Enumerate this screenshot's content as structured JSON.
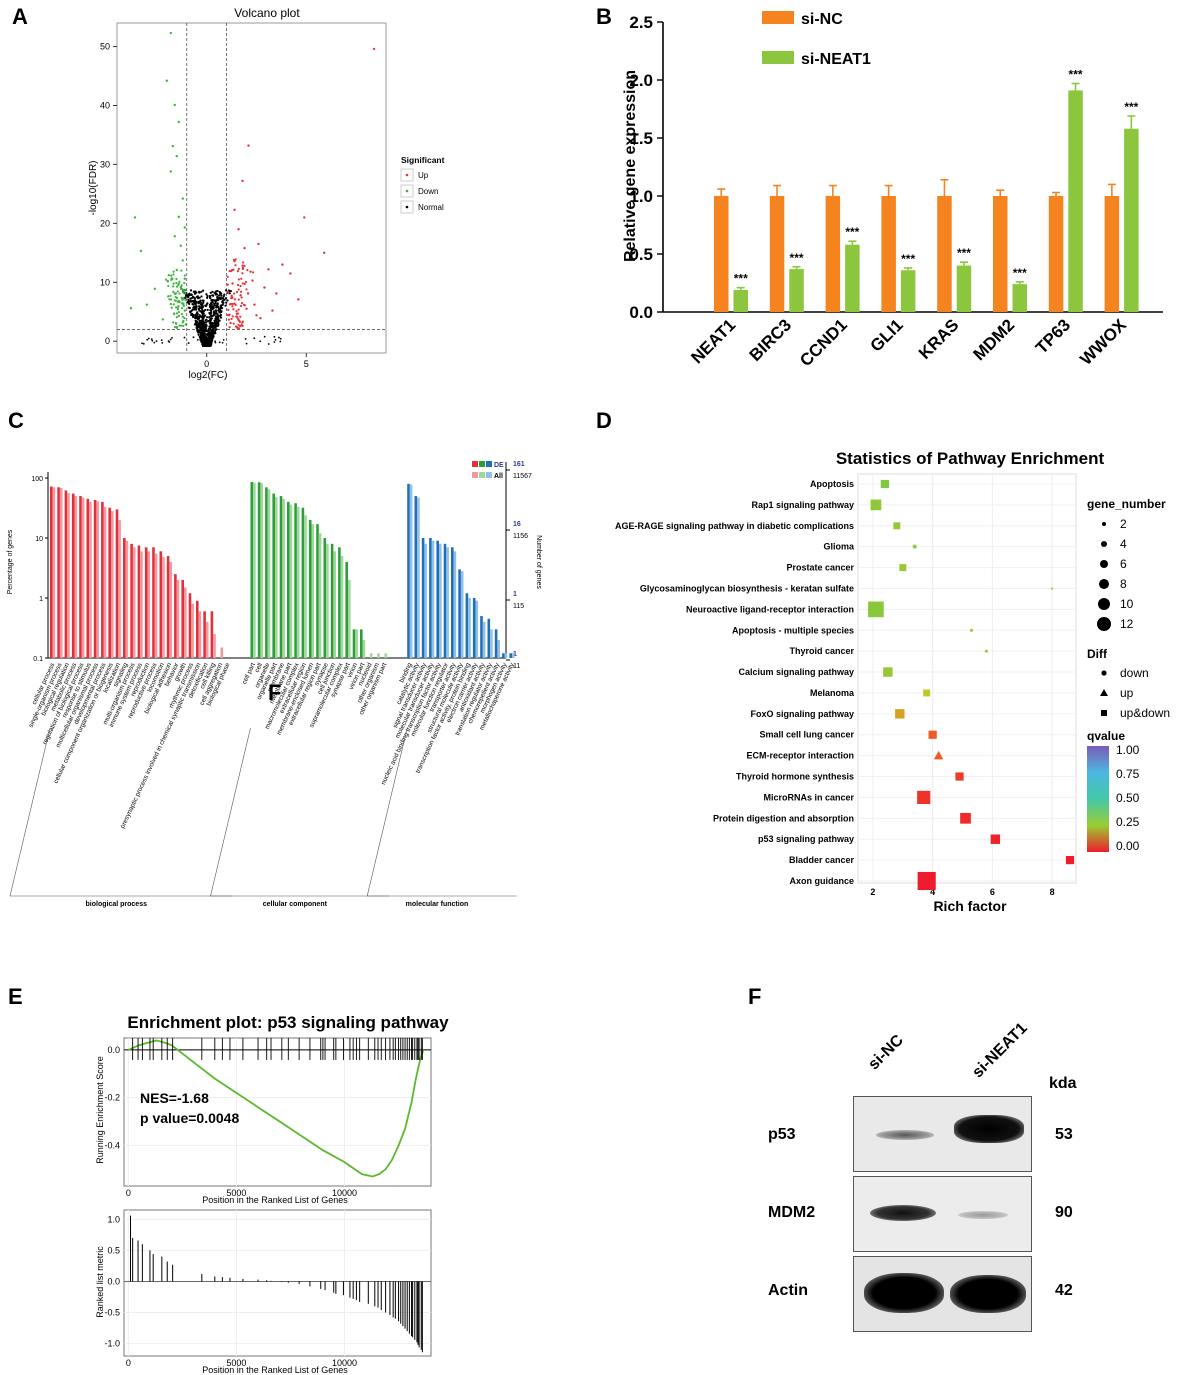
{
  "panel_labels": {
    "a": "A",
    "b": "B",
    "c": "C",
    "d": "D",
    "e": "E",
    "f": "F"
  },
  "chart_data": [
    {
      "id": "A",
      "type": "scatter",
      "title": "Volcano plot",
      "xlabel": "log2(FC)",
      "ylabel": "-log10(FDR)",
      "xticks": [
        "0",
        "5"
      ],
      "yticks": [
        "0",
        "10",
        "20",
        "30",
        "40",
        "50"
      ],
      "xlim": [
        -4.5,
        9
      ],
      "ylim": [
        -2,
        54
      ],
      "fc_threshold": [
        -1,
        1
      ],
      "fdr_threshold": 2,
      "legend_title": "Significant",
      "legend": [
        {
          "label": "Up",
          "color": "#e8323a"
        },
        {
          "label": "Down",
          "color": "#3cb53c"
        },
        {
          "label": "Normal",
          "color": "#000000"
        }
      ],
      "up_points": [
        [
          8.4,
          49.6
        ],
        [
          2.1,
          33.2
        ],
        [
          4.9,
          21
        ],
        [
          5.9,
          15
        ],
        [
          3.8,
          13
        ],
        [
          4.2,
          11.5
        ],
        [
          3.1,
          12.2
        ],
        [
          2.6,
          16.5
        ],
        [
          1.6,
          19
        ],
        [
          1.9,
          15.8
        ],
        [
          2.3,
          10.3
        ],
        [
          1.4,
          13.6
        ],
        [
          2.9,
          9.1
        ],
        [
          1.7,
          7.8
        ],
        [
          3.5,
          8.1
        ],
        [
          2.4,
          6.2
        ],
        [
          1.3,
          9.8
        ],
        [
          2.0,
          5.5
        ],
        [
          1.5,
          4.2
        ],
        [
          3.3,
          5.2
        ],
        [
          1.2,
          3.1
        ],
        [
          1.8,
          2.6
        ],
        [
          2.7,
          3.9
        ],
        [
          1.4,
          22.3
        ],
        [
          1.8,
          27.2
        ],
        [
          2.2,
          11.8
        ],
        [
          1.3,
          6.3
        ],
        [
          1.6,
          3.6
        ],
        [
          4.6,
          7.1
        ],
        [
          2.5,
          4.4
        ]
      ],
      "down_points": [
        [
          -1.8,
          52.3
        ],
        [
          -2.0,
          44.2
        ],
        [
          -1.6,
          40.1
        ],
        [
          -1.4,
          37.2
        ],
        [
          -1.7,
          33.1
        ],
        [
          -1.5,
          31.4
        ],
        [
          -1.8,
          28.8
        ],
        [
          -3.6,
          21
        ],
        [
          -3.3,
          15.3
        ],
        [
          -1.2,
          24.2
        ],
        [
          -1.4,
          21.1
        ],
        [
          -1.1,
          19.3
        ],
        [
          -1.6,
          17.8
        ],
        [
          -1.3,
          16.2
        ],
        [
          -1.2,
          13.7
        ],
        [
          -1.5,
          12.1
        ],
        [
          -1.1,
          10.6
        ],
        [
          -1.9,
          11.2
        ],
        [
          -1.3,
          9.2
        ],
        [
          -1.6,
          8.1
        ],
        [
          -1.2,
          7.1
        ],
        [
          -1.8,
          6.3
        ],
        [
          -1.1,
          5.2
        ],
        [
          -1.4,
          4.3
        ],
        [
          -2.2,
          3.7
        ],
        [
          -3.0,
          6.2
        ],
        [
          -3.8,
          5.6
        ],
        [
          -1.2,
          3.2
        ],
        [
          -1.5,
          2.4
        ],
        [
          -2.6,
          8.9
        ]
      ],
      "normal_density": "V-shaped cloud of non-significant genes between log2(FC) -1 and 1"
    },
    {
      "id": "B",
      "type": "bar",
      "ylabel": "Relative gene expression",
      "ylim": [
        0,
        2.5
      ],
      "yticks": [
        "0.0",
        "0.5",
        "1.0",
        "1.5",
        "2.0",
        "2.5"
      ],
      "categories": [
        "NEAT1",
        "BIRC3",
        "CCND1",
        "GLI1",
        "KRAS",
        "MDM2",
        "TP63",
        "WWOX"
      ],
      "series": [
        {
          "name": "si-NC",
          "color": "#f5831f",
          "values": [
            1.0,
            1.0,
            1.0,
            1.0,
            1.0,
            1.0,
            1.0,
            1.0
          ],
          "errors": [
            0.06,
            0.09,
            0.09,
            0.09,
            0.14,
            0.05,
            0.03,
            0.1
          ]
        },
        {
          "name": "si-NEAT1",
          "color": "#8cc63e",
          "values": [
            0.19,
            0.37,
            0.58,
            0.36,
            0.4,
            0.24,
            1.91,
            1.58
          ],
          "errors": [
            0.02,
            0.02,
            0.03,
            0.02,
            0.03,
            0.02,
            0.06,
            0.11
          ]
        }
      ],
      "significance": [
        "***",
        "***",
        "***",
        "***",
        "***",
        "***",
        "***",
        "***"
      ]
    },
    {
      "id": "C",
      "type": "bar",
      "yscale": "log",
      "ylabel": "Percentage of genes",
      "y2label": "Number of genes",
      "yticks": [
        "100",
        "10",
        "1",
        "0.1"
      ],
      "y2ticks_de": [
        "161",
        "16",
        "1",
        "1"
      ],
      "y2ticks_all": [
        "11567",
        "1156",
        "115",
        "11"
      ],
      "legend": [
        {
          "label": "DE"
        },
        {
          "label": "All"
        }
      ],
      "overlay_letter": "F",
      "groups": [
        {
          "name": "biological process",
          "dark": "#e0303a",
          "light": "#f09aa0",
          "categories": [
            "cellular process",
            "single-organism process",
            "biological regulation",
            "metabolic process",
            "regulation of biological process",
            "response to stimulus",
            "multicellular organismal process",
            "developmental process",
            "cellular component organization or biogenesis",
            "localization",
            "signaling",
            "multi-organism process",
            "immune system process",
            "reproduction",
            "reproductive process",
            "locomotion",
            "biological adhesion",
            "behavior",
            "growth",
            "rhythmic process",
            "presynaptic process involved in chemical synaptic transmission",
            "detoxification",
            "cell killing",
            "cell aggregation",
            "biological phase"
          ],
          "de": [
            72,
            70,
            62,
            55,
            50,
            45,
            43,
            40,
            32,
            30,
            10,
            8,
            7.5,
            7,
            7,
            6,
            5,
            2.5,
            2,
            1.2,
            0.9,
            0.6,
            0.6,
            0,
            0
          ],
          "all": [
            70,
            68,
            56,
            50,
            47,
            40,
            41,
            33,
            28,
            20,
            9,
            7,
            6,
            6,
            5.5,
            4.8,
            4,
            2,
            1.5,
            0.8,
            0.6,
            0.4,
            0.25,
            0.15,
            0.1
          ]
        },
        {
          "name": "cellular component",
          "dark": "#2e9e3a",
          "light": "#9fd89a",
          "categories": [
            "cell part",
            "cell",
            "organelle",
            "organelle part",
            "membrane",
            "membrane part",
            "macromolecular complex",
            "extracellular region",
            "membrane-enclosed lumen",
            "extracellular region part",
            "synapse",
            "cell junction",
            "supramolecular complex",
            "synapse part",
            "virion",
            "virion part",
            "nucleoid",
            "other organism",
            "other organism part"
          ],
          "de": [
            86,
            85,
            70,
            55,
            50,
            40,
            38,
            32,
            20,
            17,
            10,
            8,
            7,
            4,
            0.3,
            0.3,
            0,
            0,
            0
          ],
          "all": [
            84,
            82,
            65,
            48,
            45,
            36,
            33,
            24,
            17,
            12,
            8,
            6,
            5,
            2,
            0.3,
            0.2,
            0.12,
            0.12,
            0.12
          ]
        },
        {
          "name": "molecular function",
          "dark": "#1f6fb8",
          "light": "#92bfe6",
          "categories": [
            "binding",
            "catalytic activity",
            "signal transducer activity",
            "molecular transducer activity",
            "nucleic acid binding transcription factor activity",
            "molecular function regulator",
            "transporter activity",
            "structural molecule activity",
            "transcription factor activity, protein binding",
            "electron carrier activity",
            "antioxidant activity",
            "translation regulator activity",
            "chemorepellent activity",
            "morphogen activity",
            "metallochaperone activity"
          ],
          "de": [
            80,
            50,
            10,
            10,
            9,
            8,
            7,
            3,
            1.2,
            1,
            0.5,
            0.45,
            0.3,
            0.12,
            0.12
          ],
          "all": [
            78,
            47,
            8,
            9,
            8,
            7,
            6,
            2.8,
            1,
            0.9,
            0.4,
            0.3,
            0.2,
            0.12,
            0.12
          ]
        }
      ]
    },
    {
      "id": "D",
      "type": "scatter",
      "title": "Statistics of Pathway Enrichment",
      "xlabel": "Rich factor",
      "xticks": [
        "2",
        "4",
        "6",
        "8"
      ],
      "xlim": [
        1.5,
        8.8
      ],
      "pathways": [
        "Apoptosis",
        "Rap1 signaling pathway",
        "AGE-RAGE signaling pathway in diabetic complications",
        "Glioma",
        "Prostate cancer",
        "Glycosaminoglycan biosynthesis - keratan sulfate",
        "Neuroactive ligand-receptor interaction",
        "Apoptosis - multiple species",
        "Thyroid cancer",
        "Calcium signaling pathway",
        "Melanoma",
        "FoxO signaling pathway",
        "Small cell lung cancer",
        "ECM-receptor interaction",
        "Thyroid hormone synthesis",
        "MicroRNAs in cancer",
        "Protein digestion and absorption",
        "p53 signaling pathway",
        "Bladder cancer",
        "Axon guidance"
      ],
      "rich_factor": [
        2.4,
        2.1,
        2.8,
        3.4,
        3.0,
        8.0,
        2.1,
        5.3,
        5.8,
        2.5,
        3.8,
        2.9,
        4.0,
        4.2,
        4.9,
        3.7,
        5.1,
        6.1,
        8.6,
        3.8
      ],
      "gene_number": [
        5,
        7,
        4,
        3,
        4,
        1,
        11,
        2,
        2,
        6,
        4,
        6,
        5,
        6,
        5,
        9,
        7,
        6,
        5,
        13
      ],
      "qvalue": [
        0.3,
        0.28,
        0.27,
        0.26,
        0.26,
        0.25,
        0.29,
        0.25,
        0.24,
        0.27,
        0.2,
        0.16,
        0.08,
        0.08,
        0.04,
        0.03,
        0.02,
        0.01,
        0.0,
        0.0
      ],
      "diff": [
        "up&down",
        "up&down",
        "up&down",
        "down",
        "up&down",
        "down",
        "up&down",
        "down",
        "down",
        "up&down",
        "up&down",
        "up&down",
        "up&down",
        "up",
        "up&down",
        "up&down",
        "up&down",
        "up&down",
        "up&down",
        "up&down"
      ],
      "size_legend_title": "gene_number",
      "size_legend": [
        "2",
        "4",
        "6",
        "8",
        "10",
        "12"
      ],
      "shape_legend_title": "Diff",
      "shape_legend": [
        "down",
        "up",
        "up&down"
      ],
      "color_legend_title": "qvalue",
      "color_legend": [
        "1.00",
        "0.75",
        "0.50",
        "0.25",
        "0.00"
      ]
    },
    {
      "id": "E",
      "type": "line",
      "title": "Enrichment plot: p53 signaling pathway",
      "ylabel": "Running Enrichment Score",
      "xlabel": "Position in the Ranked List of Genes",
      "xticks": [
        "0",
        "5000",
        "10000"
      ],
      "yticks": [
        "0.0",
        "-0.2",
        "-0.4"
      ],
      "ylim": [
        -0.57,
        0.05
      ],
      "xlim": [
        -200,
        14000
      ],
      "nes_text": "NES=-1.68",
      "pvalue_text": "p value=0.0048",
      "curve_x": [
        0,
        500,
        900,
        1300,
        1700,
        2000,
        3000,
        4000,
        5000,
        6000,
        7000,
        8000,
        9000,
        10000,
        10800,
        11300,
        11600,
        11900,
        12200,
        12500,
        12800,
        13100,
        13300,
        13500,
        13650
      ],
      "curve_y": [
        0.0,
        0.02,
        0.03,
        0.04,
        0.03,
        0.02,
        -0.05,
        -0.12,
        -0.18,
        -0.24,
        -0.3,
        -0.36,
        -0.42,
        -0.47,
        -0.52,
        -0.53,
        -0.52,
        -0.5,
        -0.46,
        -0.4,
        -0.33,
        -0.22,
        -0.12,
        -0.04,
        0.0
      ],
      "hits": [
        200,
        450,
        650,
        1000,
        1150,
        1550,
        1800,
        2050,
        3400,
        4000,
        4350,
        4700,
        5300,
        6000,
        6400,
        6600,
        7100,
        7400,
        7900,
        8400,
        8900,
        9000,
        9100,
        9500,
        9600,
        9950,
        10250,
        10400,
        10550,
        10700,
        11100,
        11400,
        11550,
        11700,
        11900,
        12100,
        12250,
        12350,
        12500,
        12600,
        12700,
        12800,
        12900,
        13000,
        13100,
        13150,
        13250,
        13350,
        13400,
        13450,
        13550,
        13600
      ],
      "ranked": {
        "ylabel": "Ranked list metric",
        "xlabel": "Position in the Ranked List of Genes",
        "xticks": [
          "0",
          "5000",
          "10000"
        ],
        "yticks": [
          "1.0",
          "0.5",
          "0.0",
          "-0.5",
          "-1.0"
        ],
        "ylim": [
          -1.2,
          1.15
        ],
        "x": [
          100,
          200,
          450,
          650,
          1000,
          1150,
          1550,
          1800,
          2050,
          3400,
          4000,
          4350,
          4700,
          5300,
          6000,
          6400,
          6600,
          7100,
          7400,
          7900,
          8400,
          8900,
          9100,
          9500,
          9600,
          9950,
          10250,
          10400,
          10550,
          10700,
          11100,
          11400,
          11550,
          11700,
          11900,
          12100,
          12250,
          12350,
          12500,
          12600,
          12700,
          12800,
          12900,
          13000,
          13100,
          13150,
          13250,
          13350,
          13400,
          13450,
          13550,
          13600
        ],
        "y": [
          1.06,
          0.7,
          0.66,
          0.6,
          0.5,
          0.44,
          0.4,
          0.32,
          0.27,
          0.12,
          0.08,
          0.07,
          0.06,
          0.04,
          0.03,
          0.02,
          0.01,
          -0.01,
          -0.02,
          -0.04,
          -0.08,
          -0.12,
          -0.14,
          -0.18,
          -0.2,
          -0.22,
          -0.26,
          -0.28,
          -0.3,
          -0.33,
          -0.36,
          -0.4,
          -0.42,
          -0.46,
          -0.5,
          -0.54,
          -0.58,
          -0.6,
          -0.64,
          -0.68,
          -0.72,
          -0.76,
          -0.8,
          -0.84,
          -0.88,
          -0.9,
          -0.94,
          -0.98,
          -1.02,
          -1.06,
          -1.1,
          -1.14
        ]
      }
    }
  ],
  "western": {
    "lanes": [
      "si-NC",
      "si-NEAT1"
    ],
    "unit": "kda",
    "bands": [
      {
        "protein": "p53",
        "size": "53"
      },
      {
        "protein": "MDM2",
        "size": "90"
      },
      {
        "protein": "Actin",
        "size": "42"
      }
    ]
  }
}
